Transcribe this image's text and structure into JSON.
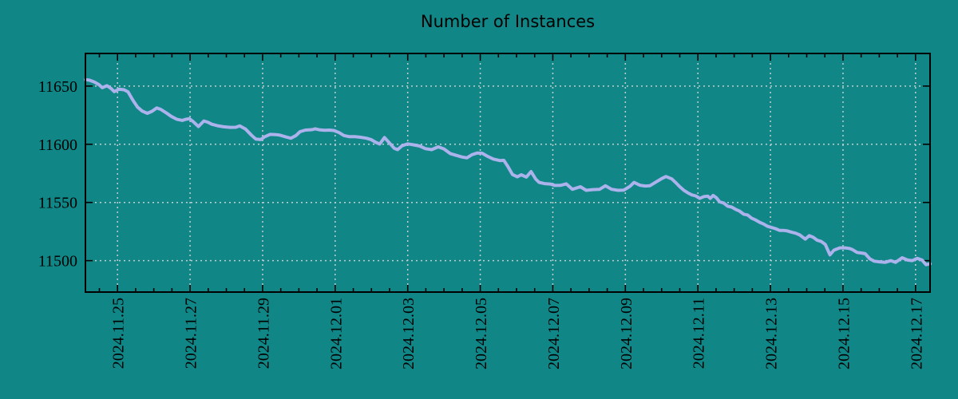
{
  "page": {
    "background": "#118686"
  },
  "chart_data": {
    "type": "line",
    "title": "Number of Instances",
    "x_axis": {
      "kind": "date",
      "unit": "days since 2024.11.24 00:00",
      "range_days": [
        0.115,
        23.4
      ],
      "tick_days": [
        1,
        3,
        5,
        7,
        9,
        11,
        13,
        15,
        17,
        19,
        21,
        23
      ],
      "tick_labels": [
        "2024.11.25",
        "2024.11.27",
        "2024.11.29",
        "2024.12.01",
        "2024.12.03",
        "2024.12.05",
        "2024.12.07",
        "2024.12.09",
        "2024.12.11",
        "2024.12.13",
        "2024.12.15",
        "2024.12.17"
      ],
      "minor_tick_interval_days": 0.5,
      "label_rotation_deg": -90
    },
    "y_axis": {
      "range": [
        11473,
        11678
      ],
      "ticks": [
        11500,
        11550,
        11600,
        11650
      ]
    },
    "grid": {
      "show": true,
      "style": "dashed",
      "on": "major-ticks"
    },
    "legend": "none",
    "colors": {
      "background": "#118686",
      "line": "#abb2ec",
      "grid": "#c2cdcd",
      "axis": "#000000",
      "text": "#000000"
    },
    "series": [
      {
        "name": "instances",
        "points": [
          [
            0.12,
            11655.5
          ],
          [
            0.23,
            11655.0
          ],
          [
            0.36,
            11653.5
          ],
          [
            0.49,
            11651.2
          ],
          [
            0.58,
            11648.6
          ],
          [
            0.71,
            11650.3
          ],
          [
            0.82,
            11648.0
          ],
          [
            0.91,
            11645.2
          ],
          [
            1.04,
            11647.3
          ],
          [
            1.18,
            11646.8
          ],
          [
            1.29,
            11645.0
          ],
          [
            1.42,
            11638.0
          ],
          [
            1.55,
            11632.0
          ],
          [
            1.68,
            11628.5
          ],
          [
            1.82,
            11626.6
          ],
          [
            1.95,
            11628.3
          ],
          [
            2.08,
            11631.2
          ],
          [
            2.19,
            11630.0
          ],
          [
            2.35,
            11626.8
          ],
          [
            2.48,
            11624.0
          ],
          [
            2.63,
            11621.5
          ],
          [
            2.79,
            11620.5
          ],
          [
            2.87,
            11621.4
          ],
          [
            2.98,
            11622.0
          ],
          [
            3.09,
            11619.3
          ],
          [
            3.23,
            11615.2
          ],
          [
            3.38,
            11620.0
          ],
          [
            3.49,
            11619.0
          ],
          [
            3.6,
            11617.2
          ],
          [
            3.76,
            11615.9
          ],
          [
            3.93,
            11615.0
          ],
          [
            4.11,
            11614.5
          ],
          [
            4.26,
            11614.6
          ],
          [
            4.37,
            11615.8
          ],
          [
            4.53,
            11613.0
          ],
          [
            4.7,
            11607.6
          ],
          [
            4.81,
            11604.5
          ],
          [
            4.95,
            11604.0
          ],
          [
            5.06,
            11606.5
          ],
          [
            5.21,
            11608.5
          ],
          [
            5.37,
            11608.3
          ],
          [
            5.48,
            11607.8
          ],
          [
            5.65,
            11606.2
          ],
          [
            5.78,
            11605.2
          ],
          [
            5.92,
            11607.5
          ],
          [
            6.03,
            11610.8
          ],
          [
            6.18,
            11612.2
          ],
          [
            6.36,
            11612.5
          ],
          [
            6.45,
            11613.3
          ],
          [
            6.58,
            11612.3
          ],
          [
            6.71,
            11612.0
          ],
          [
            6.84,
            11612.2
          ],
          [
            6.97,
            11611.8
          ],
          [
            7.11,
            11610.0
          ],
          [
            7.24,
            11607.5
          ],
          [
            7.39,
            11606.5
          ],
          [
            7.55,
            11606.5
          ],
          [
            7.7,
            11606.0
          ],
          [
            7.86,
            11605.2
          ],
          [
            7.99,
            11604.0
          ],
          [
            8.12,
            11601.6
          ],
          [
            8.23,
            11600.2
          ],
          [
            8.36,
            11605.8
          ],
          [
            8.5,
            11601.0
          ],
          [
            8.63,
            11596.5
          ],
          [
            8.72,
            11595.4
          ],
          [
            8.85,
            11598.8
          ],
          [
            9.0,
            11600.3
          ],
          [
            9.16,
            11599.5
          ],
          [
            9.33,
            11598.5
          ],
          [
            9.49,
            11596.2
          ],
          [
            9.66,
            11595.4
          ],
          [
            9.84,
            11597.8
          ],
          [
            10.0,
            11596.0
          ],
          [
            10.17,
            11592.0
          ],
          [
            10.33,
            11590.5
          ],
          [
            10.5,
            11589.0
          ],
          [
            10.63,
            11588.3
          ],
          [
            10.77,
            11591.0
          ],
          [
            10.92,
            11592.5
          ],
          [
            11.05,
            11592.3
          ],
          [
            11.21,
            11589.5
          ],
          [
            11.36,
            11587.3
          ],
          [
            11.54,
            11586.0
          ],
          [
            11.65,
            11586.2
          ],
          [
            11.76,
            11581.0
          ],
          [
            11.89,
            11574.0
          ],
          [
            12.02,
            11572.0
          ],
          [
            12.13,
            11573.8
          ],
          [
            12.27,
            11571.8
          ],
          [
            12.4,
            11576.5
          ],
          [
            12.53,
            11570.0
          ],
          [
            12.62,
            11567.3
          ],
          [
            12.77,
            11566.2
          ],
          [
            12.93,
            11565.8
          ],
          [
            13.06,
            11564.6
          ],
          [
            13.21,
            11564.7
          ],
          [
            13.37,
            11566.0
          ],
          [
            13.54,
            11561.3
          ],
          [
            13.76,
            11563.5
          ],
          [
            13.92,
            11560.4
          ],
          [
            14.1,
            11561.0
          ],
          [
            14.29,
            11561.3
          ],
          [
            14.45,
            11564.3
          ],
          [
            14.62,
            11561.3
          ],
          [
            14.8,
            11560.4
          ],
          [
            14.96,
            11560.6
          ],
          [
            15.13,
            11563.9
          ],
          [
            15.24,
            11567.2
          ],
          [
            15.4,
            11564.8
          ],
          [
            15.55,
            11564.1
          ],
          [
            15.68,
            11564.4
          ],
          [
            15.84,
            11567.5
          ],
          [
            15.99,
            11570.3
          ],
          [
            16.12,
            11572.3
          ],
          [
            16.28,
            11570.2
          ],
          [
            16.39,
            11567.0
          ],
          [
            16.5,
            11563.5
          ],
          [
            16.61,
            11560.5
          ],
          [
            16.72,
            11558.3
          ],
          [
            16.83,
            11556.5
          ],
          [
            16.94,
            11555.6
          ],
          [
            17.05,
            11553.5
          ],
          [
            17.16,
            11555.0
          ],
          [
            17.27,
            11555.4
          ],
          [
            17.34,
            11553.5
          ],
          [
            17.42,
            11556.0
          ],
          [
            17.51,
            11554.0
          ],
          [
            17.6,
            11550.5
          ],
          [
            17.71,
            11549.5
          ],
          [
            17.82,
            11546.8
          ],
          [
            17.93,
            11546.0
          ],
          [
            18.04,
            11544.0
          ],
          [
            18.15,
            11542.5
          ],
          [
            18.26,
            11539.9
          ],
          [
            18.37,
            11539.2
          ],
          [
            18.48,
            11536.5
          ],
          [
            18.59,
            11535.0
          ],
          [
            18.7,
            11533.0
          ],
          [
            18.81,
            11531.5
          ],
          [
            18.92,
            11529.5
          ],
          [
            19.03,
            11528.5
          ],
          [
            19.14,
            11527.5
          ],
          [
            19.25,
            11526.0
          ],
          [
            19.36,
            11526.0
          ],
          [
            19.47,
            11525.5
          ],
          [
            19.58,
            11524.5
          ],
          [
            19.7,
            11523.5
          ],
          [
            19.81,
            11522.0
          ],
          [
            19.96,
            11518.5
          ],
          [
            20.07,
            11521.5
          ],
          [
            20.18,
            11520.0
          ],
          [
            20.29,
            11517.5
          ],
          [
            20.4,
            11516.5
          ],
          [
            20.51,
            11514.0
          ],
          [
            20.64,
            11505.0
          ],
          [
            20.75,
            11509.0
          ],
          [
            20.91,
            11511.0
          ],
          [
            21.06,
            11511.0
          ],
          [
            21.17,
            11510.5
          ],
          [
            21.26,
            11509.5
          ],
          [
            21.39,
            11507.0
          ],
          [
            21.52,
            11506.5
          ],
          [
            21.61,
            11506.0
          ],
          [
            21.74,
            11501.5
          ],
          [
            21.86,
            11499.5
          ],
          [
            22.01,
            11499.0
          ],
          [
            22.16,
            11498.5
          ],
          [
            22.32,
            11500.0
          ],
          [
            22.45,
            11498.5
          ],
          [
            22.63,
            11502.5
          ],
          [
            22.78,
            11500.5
          ],
          [
            22.91,
            11500.0
          ],
          [
            23.05,
            11502.0
          ],
          [
            23.18,
            11500.5
          ],
          [
            23.29,
            11496.5
          ],
          [
            23.4,
            11497.3
          ]
        ]
      }
    ]
  }
}
